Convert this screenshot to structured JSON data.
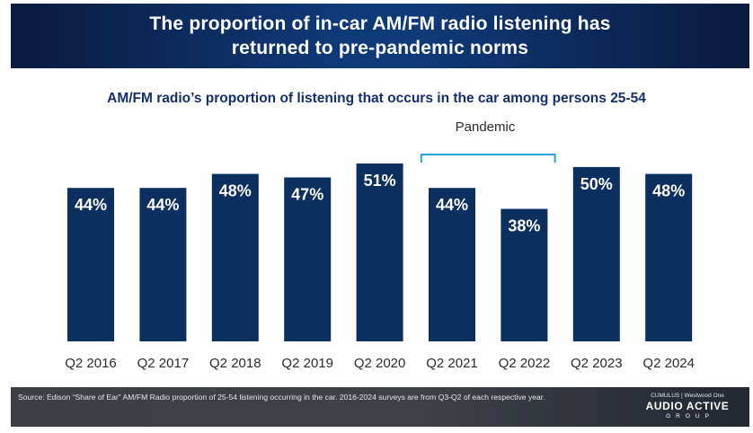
{
  "header": {
    "title_line1": "The proportion of in-car AM/FM radio listening has",
    "title_line2": "returned to pre-pandemic norms"
  },
  "chart_data": {
    "type": "bar",
    "title": "AM/FM radio’s proportion of listening that occurs in the car among persons 25-54",
    "categories": [
      "Q2 2016",
      "Q2 2017",
      "Q2 2018",
      "Q2 2019",
      "Q2 2020",
      "Q2 2021",
      "Q2 2022",
      "Q2 2023",
      "Q2 2024"
    ],
    "values": [
      44,
      44,
      48,
      47,
      51,
      44,
      38,
      50,
      48
    ],
    "value_suffix": "%",
    "ylim": [
      0,
      51
    ],
    "xlabel": "",
    "ylabel": "",
    "bar_color": "#0b2f5e",
    "annotation": {
      "text": "Pandemic",
      "from_category": "Q2 2021",
      "to_category": "Q2 2022",
      "color": "#2aa1d4"
    }
  },
  "footer": {
    "source": "Source: Edison “Share of Ear” AM/FM Radio proportion of 25-54 listening occurring in the car. 2016-2024 surveys are from Q3-Q2 of each respective year.",
    "logo_top": "CUMULUS | Westwood One",
    "logo_main": "AUDIO ACTIVE",
    "logo_sub": "GROUP"
  }
}
